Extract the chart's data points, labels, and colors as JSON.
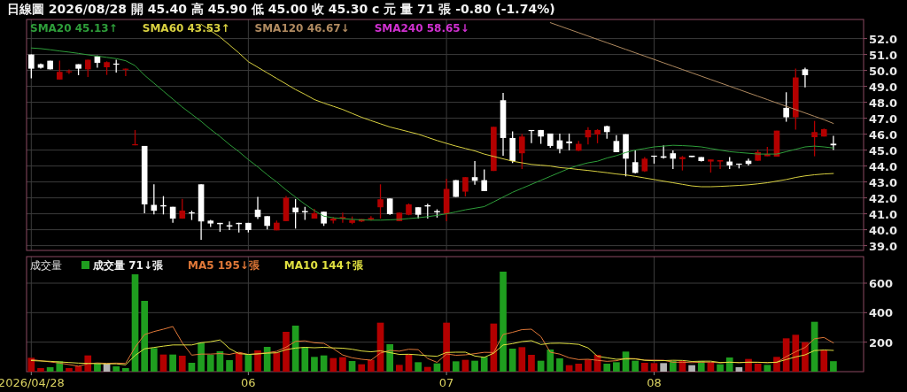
{
  "chart_data": [
    {
      "type": "candlestick",
      "title": "日線圖 2026/08/28 開 45.40 高 45.90 低 45.00 收 45.30 c 元 量 71 張 -0.80 (-1.74%)",
      "categories": [
        "2026/04/28",
        null,
        null,
        null,
        null,
        null,
        null,
        null,
        null,
        null,
        null,
        null,
        null,
        null,
        null,
        null,
        null,
        null,
        null,
        null,
        null,
        null,
        null,
        "06",
        null,
        null,
        null,
        null,
        null,
        null,
        null,
        null,
        null,
        null,
        null,
        null,
        null,
        null,
        null,
        null,
        null,
        null,
        null,
        null,
        "07",
        null,
        null,
        null,
        null,
        null,
        null,
        null,
        null,
        null,
        null,
        null,
        null,
        null,
        null,
        null,
        null,
        null,
        null,
        null,
        null,
        null,
        "08",
        null,
        null,
        null,
        null,
        null,
        null,
        null,
        null,
        null,
        null,
        null,
        null,
        null,
        null,
        null,
        null,
        null,
        null,
        null
      ],
      "ohlc": [
        [
          51.0,
          51.0,
          49.5,
          50.11
        ],
        [
          50.39,
          50.43,
          50.11,
          50.17
        ],
        [
          50.61,
          50.61,
          50.06,
          50.07
        ],
        [
          49.43,
          50.61,
          49.43,
          49.91
        ],
        [
          49.93,
          50.06,
          49.78,
          49.95
        ],
        [
          50.39,
          50.39,
          49.7,
          50.11
        ],
        [
          50.07,
          50.67,
          49.59,
          50.67
        ],
        [
          50.89,
          50.93,
          50.17,
          50.48
        ],
        [
          50.2,
          50.57,
          49.72,
          50.52
        ],
        [
          50.43,
          50.67,
          49.87,
          50.39
        ],
        [
          50.07,
          50.11,
          49.65,
          50.11
        ],
        [
          45.3,
          46.26,
          45.3,
          45.37
        ],
        [
          45.26,
          45.26,
          41.04,
          41.59
        ],
        [
          41.56,
          42.85,
          40.96,
          41.19
        ],
        [
          41.54,
          42.11,
          40.96,
          41.46
        ],
        [
          41.44,
          41.44,
          40.43,
          40.7
        ],
        [
          40.7,
          41.93,
          40.69,
          41.2
        ],
        [
          41.09,
          41.19,
          40.61,
          41.02
        ],
        [
          42.85,
          42.85,
          39.37,
          40.52
        ],
        [
          40.57,
          40.61,
          40.17,
          40.39
        ],
        [
          40.43,
          40.43,
          39.87,
          40.35
        ],
        [
          40.28,
          40.52,
          39.98,
          40.2
        ],
        [
          40.43,
          40.43,
          39.83,
          40.35
        ],
        [
          40.43,
          40.43,
          39.83,
          39.98
        ],
        [
          41.26,
          42.06,
          40.67,
          40.8
        ],
        [
          40.85,
          40.85,
          40.02,
          40.24
        ],
        [
          39.96,
          40.57,
          39.96,
          40.44
        ],
        [
          40.54,
          42.11,
          40.54,
          42.0
        ],
        [
          41.39,
          41.93,
          40.07,
          41.09
        ],
        [
          41.17,
          41.44,
          40.61,
          41.09
        ],
        [
          40.7,
          41.31,
          40.7,
          41.04
        ],
        [
          41.13,
          41.13,
          40.24,
          40.39
        ],
        [
          40.57,
          40.8,
          40.39,
          40.7
        ],
        [
          40.7,
          41.07,
          40.43,
          40.8
        ],
        [
          40.43,
          40.83,
          40.35,
          40.61
        ],
        [
          40.52,
          40.67,
          40.48,
          40.67
        ],
        [
          40.65,
          40.85,
          40.57,
          40.74
        ],
        [
          41.41,
          42.85,
          40.7,
          41.91
        ],
        [
          41.96,
          41.96,
          40.94,
          40.98
        ],
        [
          40.54,
          41.07,
          40.54,
          41.07
        ],
        [
          40.94,
          41.65,
          40.91,
          41.59
        ],
        [
          41.41,
          41.41,
          40.7,
          40.94
        ],
        [
          41.54,
          41.63,
          40.7,
          41.46
        ],
        [
          41.17,
          41.28,
          40.76,
          41.09
        ],
        [
          40.98,
          43.2,
          40.54,
          42.56
        ],
        [
          43.11,
          43.11,
          42.06,
          42.06
        ],
        [
          42.39,
          43.3,
          42.09,
          43.3
        ],
        [
          43.3,
          44.31,
          42.83,
          43.07
        ],
        [
          43.11,
          43.78,
          42.43,
          42.43
        ],
        [
          43.69,
          46.46,
          43.69,
          46.46
        ],
        [
          48.13,
          48.59,
          44.65,
          45.76
        ],
        [
          45.76,
          46.17,
          44.19,
          44.31
        ],
        [
          44.8,
          46.0,
          43.81,
          45.85
        ],
        [
          46.26,
          46.26,
          45.43,
          46.2
        ],
        [
          46.26,
          46.26,
          45.39,
          45.85
        ],
        [
          46.04,
          46.04,
          45.15,
          45.26
        ],
        [
          45.61,
          46.04,
          44.8,
          45.07
        ],
        [
          45.54,
          46.04,
          44.98,
          45.43
        ],
        [
          44.96,
          45.57,
          44.93,
          45.39
        ],
        [
          45.8,
          46.44,
          45.35,
          46.26
        ],
        [
          45.98,
          46.31,
          45.43,
          46.26
        ],
        [
          46.5,
          46.54,
          45.72,
          46.13
        ],
        [
          45.57,
          45.94,
          44.87,
          44.87
        ],
        [
          46.0,
          46.0,
          43.35,
          44.46
        ],
        [
          44.24,
          44.98,
          43.54,
          43.57
        ],
        [
          43.67,
          44.56,
          43.63,
          44.46
        ],
        [
          44.65,
          44.65,
          44.15,
          44.59
        ],
        [
          44.61,
          45.3,
          44.46,
          44.52
        ],
        [
          44.8,
          44.98,
          43.81,
          44.46
        ],
        [
          44.43,
          44.63,
          43.72,
          44.56
        ],
        [
          44.65,
          44.65,
          44.56,
          44.56
        ],
        [
          44.56,
          44.56,
          44.28,
          44.31
        ],
        [
          44.28,
          44.41,
          43.59,
          44.41
        ],
        [
          44.28,
          44.37,
          43.81,
          44.37
        ],
        [
          44.28,
          44.56,
          43.81,
          44.04
        ],
        [
          44.15,
          44.15,
          43.85,
          44.09
        ],
        [
          44.33,
          44.46,
          44.04,
          44.13
        ],
        [
          44.33,
          45.02,
          44.33,
          44.87
        ],
        [
          44.61,
          45.2,
          44.61,
          44.74
        ],
        [
          44.59,
          46.22,
          44.59,
          46.22
        ],
        [
          47.65,
          48.63,
          46.78,
          47.06
        ],
        [
          47.06,
          50.11,
          46.28,
          49.56
        ],
        [
          50.07,
          50.17,
          48.94,
          49.7
        ],
        [
          45.81,
          46.83,
          44.61,
          46.13
        ],
        [
          45.85,
          46.35,
          45.85,
          46.31
        ],
        [
          45.4,
          45.9,
          45.0,
          45.3
        ]
      ],
      "colors": [
        "#ffffff",
        "#ffffff",
        "#ffffff",
        "#b30000",
        "#b30000",
        "#ffffff",
        "#b30000",
        "#ffffff",
        "#b30000",
        "#ffffff",
        "#b30000",
        "#b30000",
        "#ffffff",
        "#ffffff",
        "#ffffff",
        "#ffffff",
        "#b30000",
        "#ffffff",
        "#ffffff",
        "#ffffff",
        "#ffffff",
        "#ffffff",
        "#ffffff",
        "#ffffff",
        "#ffffff",
        "#ffffff",
        "#b30000",
        "#b30000",
        "#ffffff",
        "#ffffff",
        "#b30000",
        "#ffffff",
        "#b30000",
        "#b30000",
        "#b30000",
        "#b30000",
        "#b30000",
        "#b30000",
        "#ffffff",
        "#b30000",
        "#b30000",
        "#ffffff",
        "#ffffff",
        "#ffffff",
        "#b30000",
        "#ffffff",
        "#b30000",
        "#ffffff",
        "#ffffff",
        "#b30000",
        "#ffffff",
        "#ffffff",
        "#b30000",
        "#ffffff",
        "#ffffff",
        "#ffffff",
        "#ffffff",
        "#ffffff",
        "#b30000",
        "#b30000",
        "#b30000",
        "#ffffff",
        "#ffffff",
        "#ffffff",
        "#ffffff",
        "#b30000",
        "#ffffff",
        "#ffffff",
        "#ffffff",
        "#b30000",
        "#ffffff",
        "#ffffff",
        "#b30000",
        "#b30000",
        "#ffffff",
        "#ffffff",
        "#ffffff",
        "#b30000",
        "#b30000",
        "#b30000",
        "#ffffff",
        "#b30000",
        "#ffffff",
        "#b30000",
        "#b30000",
        "#ffffff"
      ],
      "series": [
        {
          "type": "line",
          "name": "SMA20 45.13↑",
          "color": "#2e9e3a",
          "values": [
            51.41,
            51.37,
            51.3,
            51.22,
            51.15,
            51.07,
            50.98,
            50.9,
            50.82,
            50.74,
            50.61,
            50.3,
            49.7,
            49.2,
            48.7,
            48.2,
            47.7,
            47.25,
            46.8,
            46.3,
            45.85,
            45.35,
            44.9,
            44.4,
            43.95,
            43.45,
            43.0,
            42.5,
            42.05,
            41.6,
            41.2,
            40.85,
            40.75,
            40.7,
            40.65,
            40.62,
            40.6,
            40.6,
            40.62,
            40.65,
            40.7,
            40.75,
            40.82,
            40.9,
            41.0,
            41.12,
            41.25,
            41.35,
            41.45,
            41.75,
            42.05,
            42.35,
            42.6,
            42.85,
            43.1,
            43.35,
            43.6,
            43.85,
            44.05,
            44.2,
            44.3,
            44.5,
            44.65,
            44.85,
            45.0,
            45.1,
            45.2,
            45.25,
            45.3,
            45.28,
            45.25,
            45.2,
            45.1,
            45.0,
            44.9,
            44.85,
            44.8,
            44.75,
            44.75,
            44.75,
            44.9,
            45.05,
            45.2,
            45.25,
            45.2,
            45.13
          ]
        },
        {
          "type": "line",
          "name": "SMA60 43.53↑",
          "color": "#d8d040",
          "values": [
            null,
            null,
            null,
            null,
            null,
            null,
            null,
            null,
            null,
            null,
            null,
            null,
            null,
            null,
            null,
            null,
            null,
            null,
            52.9,
            52.5,
            52.1,
            51.6,
            51.1,
            50.55,
            50.2,
            49.85,
            49.5,
            49.15,
            48.8,
            48.5,
            48.17,
            47.95,
            47.75,
            47.55,
            47.3,
            47.06,
            46.85,
            46.65,
            46.45,
            46.3,
            46.15,
            46.0,
            45.8,
            45.6,
            45.42,
            45.25,
            45.1,
            44.95,
            44.75,
            44.6,
            44.45,
            44.3,
            44.2,
            44.1,
            44.05,
            44.0,
            43.9,
            43.85,
            43.78,
            43.72,
            43.65,
            43.58,
            43.5,
            43.44,
            43.35,
            43.25,
            43.15,
            43.05,
            42.95,
            42.85,
            42.75,
            42.7,
            42.7,
            42.72,
            42.75,
            42.78,
            42.82,
            42.88,
            42.95,
            43.05,
            43.15,
            43.28,
            43.38,
            43.45,
            43.5,
            43.53
          ]
        },
        {
          "type": "line",
          "name": "SMA120 46.67↓",
          "color": "#b08a60",
          "values": [
            null,
            null,
            null,
            null,
            null,
            null,
            null,
            null,
            null,
            null,
            null,
            null,
            null,
            null,
            null,
            null,
            null,
            null,
            null,
            null,
            null,
            null,
            null,
            null,
            null,
            null,
            null,
            null,
            null,
            null,
            null,
            null,
            null,
            null,
            null,
            null,
            null,
            null,
            null,
            null,
            null,
            null,
            null,
            null,
            null,
            null,
            null,
            null,
            null,
            null,
            null,
            null,
            null,
            null,
            null,
            53.0,
            52.79,
            52.58,
            52.37,
            52.16,
            51.95,
            51.74,
            51.53,
            51.32,
            51.11,
            50.9,
            50.69,
            50.48,
            50.27,
            50.06,
            49.85,
            49.64,
            49.43,
            49.22,
            49.01,
            48.8,
            48.59,
            48.38,
            48.17,
            47.96,
            47.75,
            47.54,
            47.33,
            47.12,
            46.91,
            46.67
          ]
        },
        {
          "type": "line",
          "name": "SMA240 58.65↓",
          "color": "#d030d0",
          "values": [
            null,
            null,
            null,
            null,
            null,
            null,
            null,
            null,
            null,
            null,
            null,
            null,
            null,
            null,
            null,
            null,
            null,
            null,
            null,
            null,
            null,
            null,
            null,
            null,
            null,
            null,
            null,
            null,
            null,
            null,
            null,
            null,
            null,
            null,
            null,
            null,
            null,
            null,
            null,
            null,
            null,
            null,
            null,
            null,
            null,
            null,
            null,
            null,
            null,
            null,
            null,
            null,
            null,
            null,
            null,
            null,
            null,
            null,
            null,
            null,
            null,
            null,
            null,
            null,
            null,
            null,
            null,
            null,
            null,
            null,
            null,
            null,
            null,
            null,
            null,
            null,
            null,
            null,
            null,
            null,
            null,
            null,
            null,
            null,
            null,
            null
          ]
        }
      ],
      "ylim": [
        38.7,
        53.2
      ],
      "yticks": [
        {
          "value": 39,
          "label": "39.0"
        },
        {
          "value": 40,
          "label": "40.0"
        },
        {
          "value": 41,
          "label": "41.0"
        },
        {
          "value": 42,
          "label": "42.0"
        },
        {
          "value": 43,
          "label": "43.0"
        },
        {
          "value": 44,
          "label": "44.0"
        },
        {
          "value": 45,
          "label": "45.0"
        },
        {
          "value": 46,
          "label": "46.0"
        },
        {
          "value": 47,
          "label": "47.0"
        },
        {
          "value": 48,
          "label": "48.0"
        },
        {
          "value": 49,
          "label": "49.0"
        },
        {
          "value": 50,
          "label": "50.0"
        },
        {
          "value": 51,
          "label": "51.0"
        },
        {
          "value": 52,
          "label": "52.0"
        }
      ],
      "grid": true,
      "legend": "top left",
      "tick_labels": "y"
    },
    {
      "type": "bar",
      "title": "成交量",
      "categories": [
        "2026/04/28",
        null,
        null,
        null,
        null,
        null,
        null,
        null,
        null,
        null,
        null,
        null,
        null,
        null,
        null,
        null,
        null,
        null,
        null,
        null,
        null,
        null,
        null,
        "06",
        null,
        null,
        null,
        null,
        null,
        null,
        null,
        null,
        null,
        null,
        null,
        null,
        null,
        null,
        null,
        null,
        null,
        null,
        null,
        null,
        "07",
        null,
        null,
        null,
        null,
        null,
        null,
        null,
        null,
        null,
        null,
        null,
        null,
        null,
        null,
        null,
        null,
        null,
        null,
        null,
        null,
        null,
        "08",
        null,
        null,
        null,
        null,
        null,
        null,
        null,
        null,
        null,
        null,
        null,
        null,
        null,
        null,
        null,
        null,
        null,
        null,
        null
      ],
      "series": [
        {
          "type": "bar",
          "name": "成交量 71↓張",
          "values": [
            94,
            24,
            30,
            70,
            24,
            36,
            110,
            56,
            54,
            36,
            24,
            660,
            480,
            160,
            116,
            116,
            108,
            60,
            196,
            114,
            138,
            78,
            130,
            118,
            144,
            168,
            130,
            270,
            312,
            166,
            100,
            110,
            92,
            98,
            72,
            50,
            80,
            332,
            186,
            46,
            118,
            64,
            32,
            56,
            332,
            70,
            80,
            74,
            100,
            326,
            678,
            156,
            166,
            114,
            74,
            150,
            90,
            44,
            54,
            82,
            114,
            54,
            64,
            136,
            74,
            60,
            58,
            58,
            72,
            72,
            44,
            72,
            60,
            50,
            96,
            30,
            86,
            54,
            46,
            100,
            226,
            250,
            200,
            338,
            144,
            71
          ],
          "colors": [
            "#b30000",
            "#b30000",
            "#1f9e1f",
            "#1f9e1f",
            "#b30000",
            "#b30000",
            "#b30000",
            "#1f9e1f",
            "#b4b4b4",
            "#1f9e1f",
            "#1f9e1f",
            "#1f9e1f",
            "#1f9e1f",
            "#1f9e1f",
            "#b30000",
            "#1f9e1f",
            "#b30000",
            "#1f9e1f",
            "#1f9e1f",
            "#1f9e1f",
            "#1f9e1f",
            "#1f9e1f",
            "#b30000",
            "#1f9e1f",
            "#b30000",
            "#1f9e1f",
            "#b30000",
            "#b30000",
            "#1f9e1f",
            "#1f9e1f",
            "#1f9e1f",
            "#1f9e1f",
            "#b30000",
            "#b30000",
            "#1f9e1f",
            "#b30000",
            "#b30000",
            "#b30000",
            "#1f9e1f",
            "#b30000",
            "#b30000",
            "#1f9e1f",
            "#b30000",
            "#1f9e1f",
            "#b30000",
            "#1f9e1f",
            "#b30000",
            "#1f9e1f",
            "#1f9e1f",
            "#b30000",
            "#1f9e1f",
            "#1f9e1f",
            "#b30000",
            "#b30000",
            "#1f9e1f",
            "#1f9e1f",
            "#1f9e1f",
            "#b30000",
            "#b30000",
            "#b30000",
            "#b30000",
            "#1f9e1f",
            "#1f9e1f",
            "#1f9e1f",
            "#1f9e1f",
            "#b30000",
            "#b30000",
            "#b4b4b4",
            "#1f9e1f",
            "#b30000",
            "#b4b4b4",
            "#1f9e1f",
            "#b30000",
            "#1f9e1f",
            "#1f9e1f",
            "#b4b4b4",
            "#b30000",
            "#b30000",
            "#1f9e1f",
            "#b30000",
            "#b30000",
            "#b30000",
            "#b30000",
            "#1f9e1f",
            "#b30000",
            "#1f9e1f"
          ]
        },
        {
          "type": "line",
          "name": "MA5 195↓張",
          "color": "#e07838",
          "values": [
            82,
            74,
            66,
            58,
            48,
            37,
            54,
            59,
            56,
            58,
            56,
            166,
            251,
            272,
            288,
            306,
            196,
            112,
            119,
            119,
            123,
            117,
            131,
            116,
            122,
            128,
            138,
            166,
            205,
            209,
            196,
            192,
            156,
            113,
            94,
            84,
            78,
            126,
            144,
            139,
            152,
            149,
            89,
            63,
            120,
            111,
            114,
            122,
            131,
            130,
            252,
            267,
            285,
            288,
            238,
            132,
            119,
            94,
            82,
            84,
            77,
            70,
            74,
            90,
            88,
            78,
            78,
            77,
            64,
            64,
            61,
            64,
            64,
            60,
            64,
            62,
            64,
            63,
            62,
            63,
            102,
            135,
            164,
            223,
            232,
            195
          ]
        },
        {
          "type": "line",
          "name": "MA10 144↑張",
          "color": "#e0e040",
          "values": [
            75,
            72,
            70,
            66,
            62,
            58,
            56,
            54,
            53,
            53,
            46,
            110,
            155,
            164,
            173,
            181,
            181,
            181,
            196,
            203,
            215,
            157,
            122,
            117,
            120,
            125,
            128,
            149,
            160,
            165,
            162,
            165,
            161,
            159,
            152,
            140,
            135,
            141,
            129,
            117,
            118,
            114,
            108,
            104,
            130,
            132,
            132,
            106,
            97,
            125,
            181,
            190,
            204,
            210,
            184,
            192,
            193,
            190,
            185,
            161,
            104,
            94,
            84,
            86,
            86,
            77,
            74,
            75,
            77,
            76,
            69,
            71,
            71,
            62,
            64,
            61,
            64,
            64,
            61,
            64,
            82,
            100,
            114,
            143,
            147,
            144
          ]
        }
      ],
      "ylim": [
        0,
        780
      ],
      "yticks": [
        200,
        400,
        600
      ],
      "grid": true,
      "legend": "top left"
    }
  ]
}
